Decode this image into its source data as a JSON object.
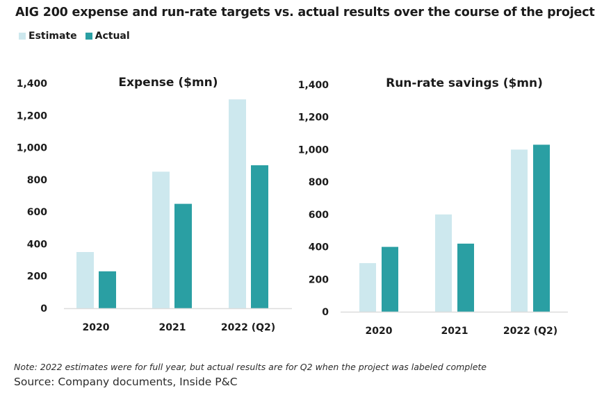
{
  "title": "AIG 200 expense and run-rate targets vs. actual results over the course of the project",
  "legend": [
    {
      "label": "Estimate",
      "color": "#cde8ee"
    },
    {
      "label": "Actual",
      "color": "#2a9fa3"
    }
  ],
  "note": "Note: 2022 estimates were for full year, but actual results are for Q2 when the project was labeled complete",
  "source": "Source: Company documents, Inside P&C",
  "chart_data": [
    {
      "type": "bar",
      "title": "Expense ($mn)",
      "xlabel": "",
      "ylabel": "",
      "categories": [
        "2020",
        "2021",
        "2022 (Q2)"
      ],
      "series": [
        {
          "name": "Estimate",
          "values": [
            350,
            850,
            1300
          ]
        },
        {
          "name": "Actual",
          "values": [
            230,
            650,
            890
          ]
        }
      ],
      "ylim": [
        0,
        1400
      ],
      "yticks": [
        0,
        200,
        400,
        600,
        800,
        1000,
        1200,
        1400
      ],
      "ytick_labels": [
        "0",
        "200",
        "400",
        "600",
        "800",
        "1,000",
        "1,200",
        "1,400"
      ],
      "grid": false,
      "legend": "top-left"
    },
    {
      "type": "bar",
      "title": "Run-rate savings ($mn)",
      "xlabel": "",
      "ylabel": "",
      "categories": [
        "2020",
        "2021",
        "2022 (Q2)"
      ],
      "series": [
        {
          "name": "Estimate",
          "values": [
            300,
            600,
            1000
          ]
        },
        {
          "name": "Actual",
          "values": [
            400,
            420,
            1030
          ]
        }
      ],
      "ylim": [
        0,
        1400
      ],
      "yticks": [
        0,
        200,
        400,
        600,
        800,
        1000,
        1200,
        1400
      ],
      "ytick_labels": [
        "0",
        "200",
        "400",
        "600",
        "800",
        "1,000",
        "1,200",
        "1,400"
      ],
      "grid": false,
      "legend": "top-left"
    }
  ]
}
